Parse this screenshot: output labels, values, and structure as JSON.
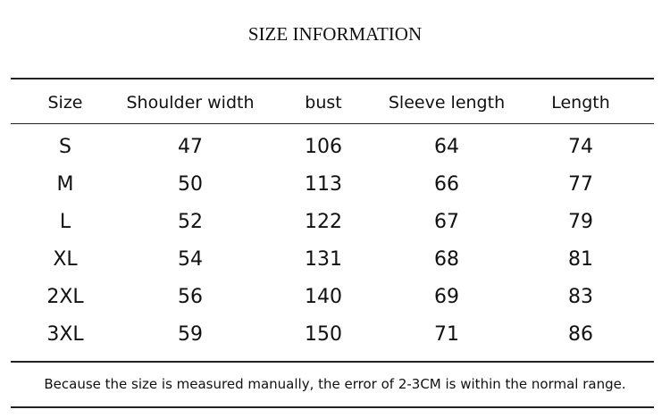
{
  "header": {
    "title": "SIZE INFORMATION"
  },
  "table": {
    "columns": [
      "Size",
      "Shoulder width",
      "bust",
      "Sleeve length",
      "Length"
    ],
    "rows": [
      [
        "S",
        47,
        106,
        64,
        74
      ],
      [
        "M",
        50,
        113,
        66,
        77
      ],
      [
        "L",
        52,
        122,
        67,
        79
      ],
      [
        "XL",
        54,
        131,
        68,
        81
      ],
      [
        "2XL",
        56,
        140,
        69,
        83
      ],
      [
        "3XL",
        59,
        150,
        71,
        86
      ]
    ]
  },
  "footer": {
    "note": "Because the size is measured manually, the error of 2-3CM is within the normal range."
  }
}
